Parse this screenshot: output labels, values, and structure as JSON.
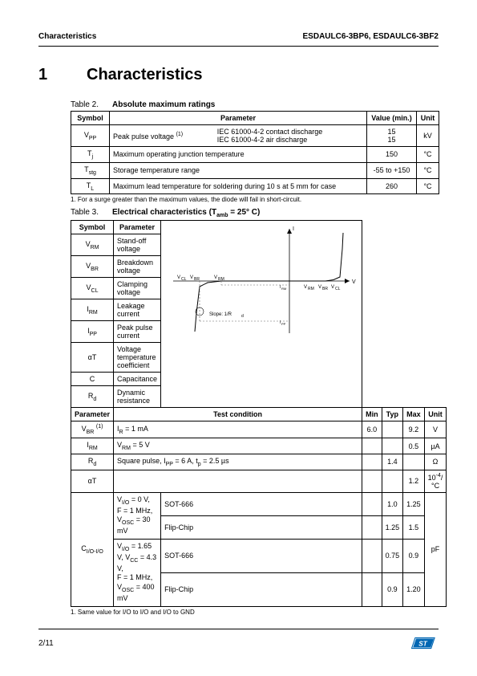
{
  "header": {
    "left": "Characteristics",
    "right": "ESDAULC6-3BP6, ESDAULC6-3BF2"
  },
  "section": {
    "number": "1",
    "title": "Characteristics"
  },
  "table2": {
    "caption_num": "Table 2.",
    "caption_title": "Absolute maximum ratings",
    "headers": {
      "symbol": "Symbol",
      "parameter": "Parameter",
      "value": "Value (min.)",
      "unit": "Unit"
    },
    "rows": {
      "vpp": {
        "symbol_html": "V<span class='sub'>PP</span>",
        "param_label": "Peak pulse voltage ",
        "param_sup": "(1)",
        "cond1": "IEC 61000-4-2 contact discharge",
        "cond2": "IEC 61000-4-2 air discharge",
        "val1": "15",
        "val2": "15",
        "unit": "kV"
      },
      "tj": {
        "symbol_html": "T<span class='sub'>j</span>",
        "param": "Maximum operating junction temperature",
        "value": "150",
        "unit": "°C"
      },
      "tstg": {
        "symbol_html": "T<span class='sub'>stg</span>",
        "param": "Storage temperature range",
        "value": "-55 to +150",
        "unit": "°C"
      },
      "tl": {
        "symbol_html": "T<span class='sub'>L</span>",
        "param": "Maximum lead temperature for soldering during 10 s at 5 mm for case",
        "value": "260",
        "unit": "°C"
      }
    },
    "footnote": "1.  For a surge greater than the maximum values, the diode will fail in short-circuit."
  },
  "table3": {
    "caption_num": "Table 3.",
    "caption_title_html": "Electrical characteristics (T<span class='sub'>amb</span> = 25° C)",
    "top_headers": {
      "symbol": "Symbol",
      "parameter": "Parameter"
    },
    "param_rows": [
      {
        "sym": "V<span class='sub'>RM</span>",
        "param": "Stand-off voltage"
      },
      {
        "sym": "V<span class='sub'>BR</span>",
        "param": "Breakdown voltage"
      },
      {
        "sym": "V<span class='sub'>CL</span>",
        "param": "Clamping voltage"
      },
      {
        "sym": "I<span class='sub'>RM</span>",
        "param": "Leakage current"
      },
      {
        "sym": "I<span class='sub'>PP</span>",
        "param": "Peak pulse current"
      },
      {
        "sym": "αT",
        "param": "Voltage temperature coefficient"
      },
      {
        "sym": "C",
        "param": "Capacitance"
      },
      {
        "sym": "R<span class='sub'>d</span>",
        "param": "Dynamic resistance"
      }
    ],
    "cond_headers": {
      "parameter": "Parameter",
      "test": "Test condition",
      "min": "Min",
      "typ": "Typ",
      "max": "Max",
      "unit": "Unit"
    },
    "cond_rows": {
      "vbr": {
        "sym": "V<span class='sub'>BR</span> <span class='sup'>(1)</span>",
        "test": "I<span class='sub'>R</span> = 1 mA",
        "min": "6.0",
        "typ": "",
        "max": "9.2",
        "unit": "V"
      },
      "irm": {
        "sym": "I<span class='sub'>RM</span>",
        "test": "V<span class='sub'>RM</span> = 5 V",
        "min": "",
        "typ": "",
        "max": "0.5",
        "unit": "µA"
      },
      "rd": {
        "sym": "R<span class='sub'>d</span>",
        "test": "Square pulse, I<span class='sub'>PP</span> = 6 A, t<span class='sub'>p</span> = 2.5 µs",
        "min": "",
        "typ": "1.4",
        "max": "",
        "unit": "Ω"
      },
      "alpha": {
        "sym": "αT",
        "test": "",
        "min": "",
        "typ": "",
        "max": "1.2",
        "unit": "10<span class='sup'>-4</span>/°C"
      },
      "cap": {
        "sym": "C<span class='sub'>I/O-I/O</span>",
        "cond1": "V<span class='sub'>I/O</span> = 0 V,<br>F = 1 MHz, V<span class='sub'>OSC</span> = 30 mV",
        "cond2": "V<span class='sub'>I/O</span> = 1.65 V, V<span class='sub'>CC</span> = 4.3 V,<br>F = 1 MHz, V<span class='sub'>OSC</span> = 400 mV",
        "r1": {
          "pkg": "SOT-666",
          "typ": "1.0",
          "max": "1.25"
        },
        "r2": {
          "pkg": "Flip-Chip",
          "typ": "1.25",
          "max": "1.5"
        },
        "r3": {
          "pkg": "SOT-666",
          "typ": "0.75",
          "max": "0.9"
        },
        "r4": {
          "pkg": "Flip-Chip",
          "typ": "0.9",
          "max": "1.20"
        },
        "unit": "pF"
      }
    },
    "footnote": "1.  Same value for I/O to I/O and I/O to GND",
    "chart": {
      "labels": {
        "I": "I",
        "V": "V",
        "VCL": "V",
        "VBR": "V",
        "VRM": "V",
        "IRM": "I",
        "IPP": "I",
        "slope": "Slope: 1/R"
      },
      "axis_color": "#000",
      "dash_color": "#666"
    }
  },
  "footer": {
    "page": "2/11"
  }
}
